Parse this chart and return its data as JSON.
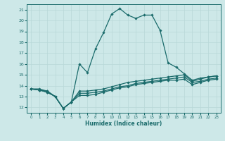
{
  "xlabel": "Humidex (Indice chaleur)",
  "ylabel": "",
  "xlim": [
    -0.5,
    23.5
  ],
  "ylim": [
    11.5,
    21.5
  ],
  "yticks": [
    12,
    13,
    14,
    15,
    16,
    17,
    18,
    19,
    20,
    21
  ],
  "xticks": [
    0,
    1,
    2,
    3,
    4,
    5,
    6,
    7,
    8,
    9,
    10,
    11,
    12,
    13,
    14,
    15,
    16,
    17,
    18,
    19,
    20,
    21,
    22,
    23
  ],
  "bg_color": "#cde8e8",
  "grid_color": "#b8d8d8",
  "line_color": "#1a6b6b",
  "line_width": 0.9,
  "marker": "D",
  "marker_size": 1.8,
  "lines": [
    [
      13.7,
      13.7,
      13.5,
      13.0,
      11.9,
      12.5,
      16.0,
      15.2,
      17.4,
      18.9,
      20.6,
      21.1,
      20.5,
      20.2,
      20.5,
      20.5,
      19.1,
      16.1,
      15.7,
      15.1,
      14.5,
      14.7,
      14.8,
      14.9
    ],
    [
      13.7,
      13.6,
      13.5,
      13.0,
      11.9,
      12.5,
      13.5,
      13.5,
      13.6,
      13.7,
      13.9,
      14.1,
      14.3,
      14.4,
      14.5,
      14.6,
      14.7,
      14.8,
      14.9,
      15.0,
      14.4,
      14.6,
      14.8,
      14.9
    ],
    [
      13.7,
      13.6,
      13.4,
      13.0,
      11.9,
      12.5,
      13.3,
      13.3,
      13.4,
      13.5,
      13.7,
      13.9,
      14.0,
      14.2,
      14.3,
      14.4,
      14.5,
      14.6,
      14.7,
      14.8,
      14.3,
      14.4,
      14.6,
      14.7
    ],
    [
      13.7,
      13.6,
      13.4,
      13.0,
      11.9,
      12.5,
      13.1,
      13.1,
      13.2,
      13.4,
      13.6,
      13.8,
      13.9,
      14.1,
      14.2,
      14.3,
      14.4,
      14.5,
      14.5,
      14.6,
      14.1,
      14.3,
      14.5,
      14.6
    ]
  ]
}
